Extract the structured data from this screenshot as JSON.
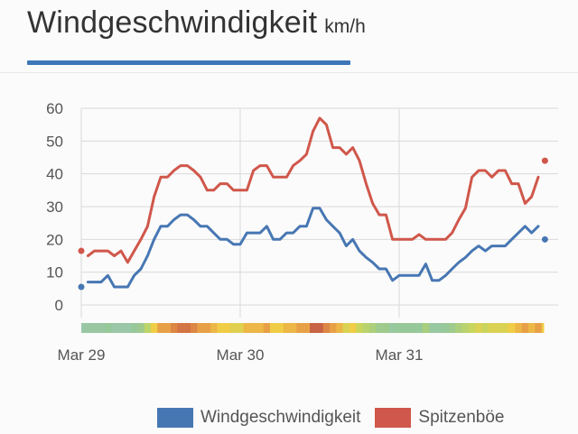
{
  "title": "Windgeschwindigkeit",
  "unit": "km/h",
  "colors": {
    "accent": "#3e77b8",
    "wind": "#4777b3",
    "gust": "#d0574b",
    "grid": "#d9d9d9"
  },
  "legend": {
    "wind_label": "Windgeschwindigkeit",
    "gust_label": "Spitzenböe"
  },
  "chart_data": {
    "type": "line",
    "title": "Windgeschwindigkeit",
    "xlabel": "",
    "ylabel": "",
    "ylim": [
      0,
      60
    ],
    "yticks": [
      0,
      10,
      20,
      30,
      40,
      50,
      60
    ],
    "xlim": [
      0,
      3
    ],
    "xticks": [
      {
        "value": 0,
        "label": "Mar 29"
      },
      {
        "value": 1,
        "label": "Mar 30"
      },
      {
        "value": 2,
        "label": "Mar 31"
      }
    ],
    "grid": true,
    "legend_position": "bottom",
    "x": [
      0,
      0.042,
      0.083,
      0.125,
      0.167,
      0.208,
      0.25,
      0.292,
      0.333,
      0.375,
      0.417,
      0.458,
      0.5,
      0.542,
      0.583,
      0.625,
      0.667,
      0.708,
      0.75,
      0.792,
      0.833,
      0.875,
      0.917,
      0.958,
      1,
      1.042,
      1.083,
      1.125,
      1.167,
      1.208,
      1.25,
      1.292,
      1.333,
      1.375,
      1.417,
      1.458,
      1.5,
      1.542,
      1.583,
      1.625,
      1.667,
      1.708,
      1.75,
      1.792,
      1.833,
      1.875,
      1.917,
      1.958,
      2,
      2.042,
      2.083,
      2.125,
      2.167,
      2.208,
      2.25,
      2.292,
      2.333,
      2.375,
      2.417,
      2.458,
      2.5,
      2.542,
      2.583,
      2.625,
      2.667,
      2.708,
      2.75,
      2.792,
      2.833,
      2.875,
      2.917
    ],
    "series": [
      {
        "name": "Windgeschwindigkeit",
        "values": [
          5.5,
          7,
          7,
          7,
          9,
          5.5,
          5.5,
          5.5,
          9,
          11,
          15,
          20,
          24,
          24,
          26,
          27.5,
          27.5,
          26,
          24,
          24,
          22,
          20,
          20,
          18.5,
          18.5,
          22,
          22,
          22,
          24,
          20,
          20,
          22,
          22,
          24,
          24,
          29.5,
          29.5,
          26,
          24,
          22,
          18,
          20,
          16.5,
          14.5,
          13,
          11,
          11,
          7.5,
          9,
          9,
          9,
          9,
          12.5,
          7.5,
          7.5,
          9,
          11,
          13,
          14.5,
          16.5,
          18,
          16.5,
          18,
          18,
          18,
          20,
          22,
          24,
          22,
          24,
          20
        ]
      },
      {
        "name": "Spitzenböe",
        "values": [
          16.5,
          15,
          16.5,
          16.5,
          16.5,
          15,
          16.5,
          13,
          16.5,
          20,
          24,
          33,
          39,
          39,
          41,
          42.5,
          42.5,
          41,
          39,
          35,
          35,
          37,
          37,
          35,
          35,
          35,
          41,
          42.5,
          42.5,
          39,
          39,
          39,
          42.5,
          44,
          46,
          53,
          57,
          55,
          48,
          48,
          46,
          48,
          44,
          37,
          31,
          27.5,
          27.5,
          20,
          20,
          20,
          20,
          21.5,
          20,
          20,
          20,
          20,
          22,
          26,
          29.5,
          39,
          41,
          41,
          39,
          41,
          41,
          37,
          37,
          31,
          33,
          39,
          44
        ]
      }
    ]
  }
}
